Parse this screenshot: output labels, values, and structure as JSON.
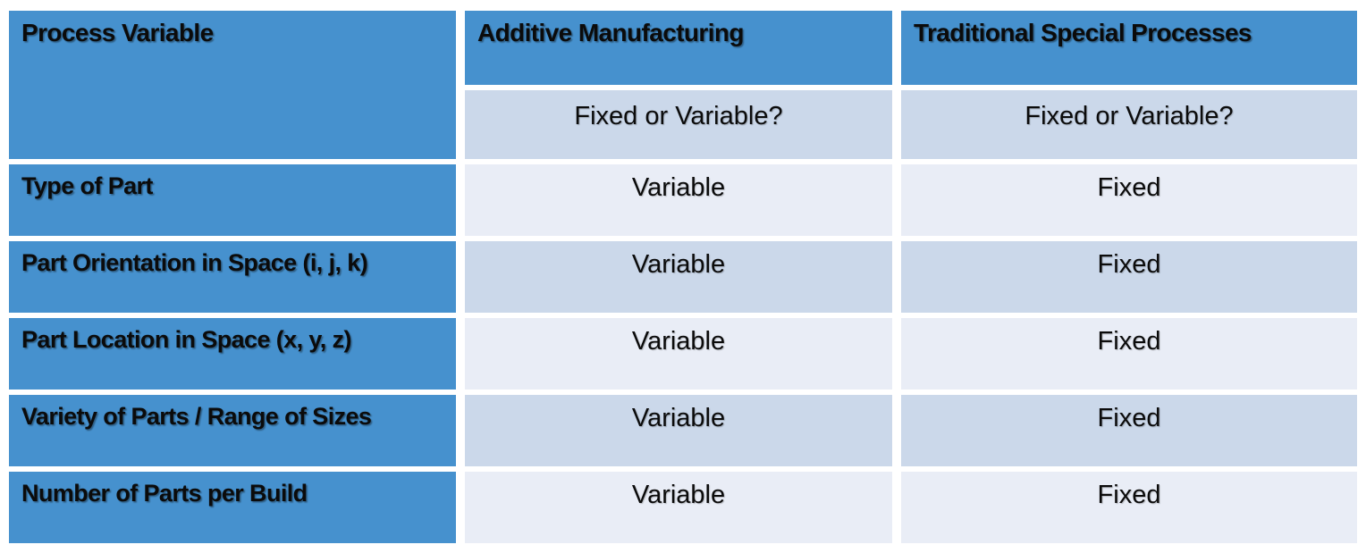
{
  "colors": {
    "header_blue": "#4691CE",
    "band_light": "#E9EDF6",
    "band_dark": "#CBD8EA",
    "gap_white": "#FFFFFF",
    "text_black": "#0B0B0B"
  },
  "table": {
    "header": {
      "col1": "Process Variable",
      "col2": "Additive Manufacturing",
      "col3": "Traditional Special Processes"
    },
    "subheader": {
      "col2": "Fixed or Variable?",
      "col3": "Fixed or Variable?"
    },
    "rows": [
      {
        "label": "Type of Part",
        "additive": "Variable",
        "traditional": "Fixed"
      },
      {
        "label": "Part Orientation in Space (i, j, k)",
        "additive": "Variable",
        "traditional": "Fixed"
      },
      {
        "label": "Part Location in Space (x, y, z)",
        "additive": "Variable",
        "traditional": "Fixed"
      },
      {
        "label": "Variety of Parts / Range of Sizes",
        "additive": "Variable",
        "traditional": "Fixed"
      },
      {
        "label": "Number of Parts per Build",
        "additive": "Variable",
        "traditional": "Fixed"
      }
    ]
  },
  "chart_data": {
    "type": "table",
    "columns": [
      "Process Variable",
      "Additive Manufacturing",
      "Traditional Special Processes"
    ],
    "subcolumns": [
      "",
      "Fixed or Variable?",
      "Fixed or Variable?"
    ],
    "rows": [
      [
        "Type of Part",
        "Variable",
        "Fixed"
      ],
      [
        "Part Orientation in Space (i, j, k)",
        "Variable",
        "Fixed"
      ],
      [
        "Part Location in Space (x, y, z)",
        "Variable",
        "Fixed"
      ],
      [
        "Variety of Parts / Range of Sizes",
        "Variable",
        "Fixed"
      ],
      [
        "Number of Parts per Build",
        "Variable",
        "Fixed"
      ]
    ]
  }
}
